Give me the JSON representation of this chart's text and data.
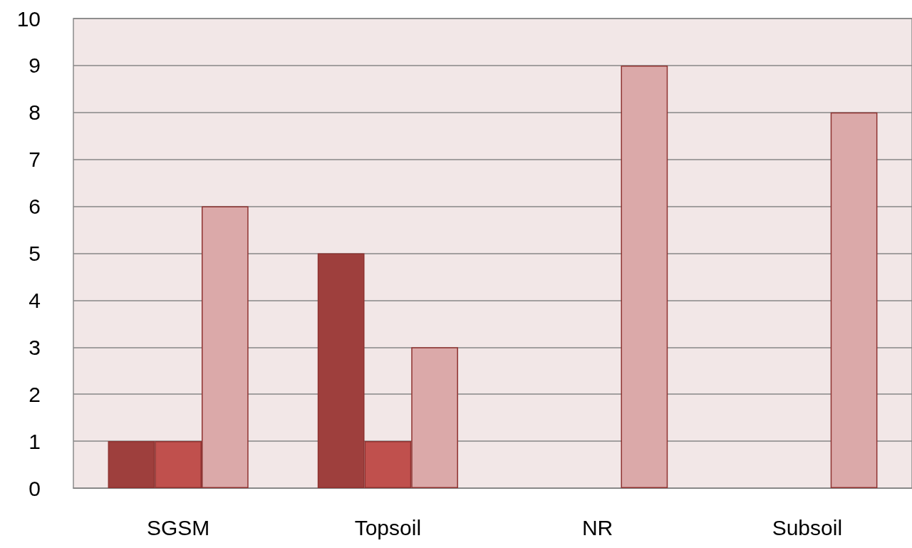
{
  "chart_data": {
    "type": "bar",
    "categories": [
      "SGSM",
      "Topsoil",
      "NR",
      "Subsoil"
    ],
    "series": [
      {
        "color": "#9e3f3d",
        "values": [
          1,
          5,
          null,
          null
        ]
      },
      {
        "color": "#c0504d",
        "values": [
          1,
          1,
          null,
          null
        ]
      },
      {
        "color": "#dba9a9",
        "values": [
          6,
          3,
          9,
          8
        ]
      }
    ],
    "ylim": [
      0,
      10
    ],
    "yticks": [
      0,
      1,
      2,
      3,
      4,
      5,
      6,
      7,
      8,
      9,
      10
    ],
    "grid": "y"
  }
}
